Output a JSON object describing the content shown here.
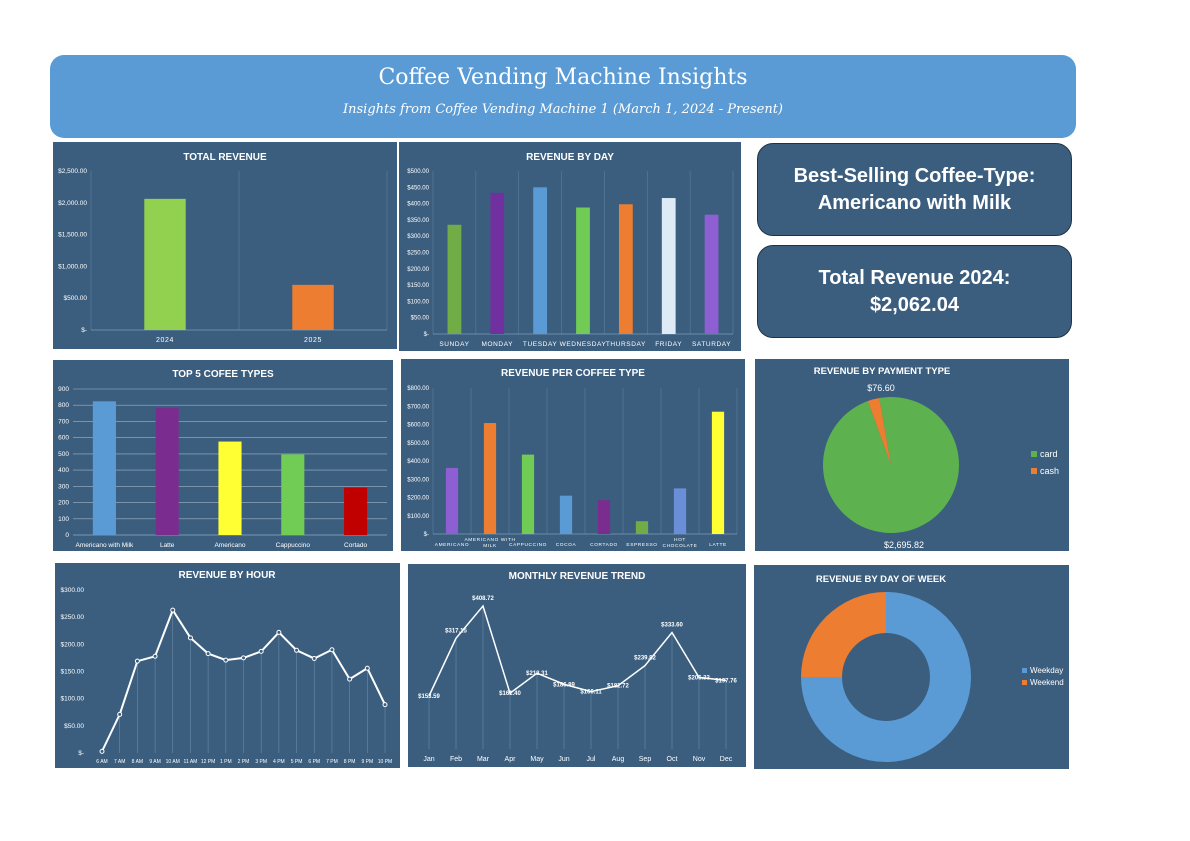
{
  "banner": {
    "title": "Coffee Vending Machine Insights",
    "subtitle": "Insights from Coffee Vending Machine 1 (March 1, 2024 - Present)"
  },
  "kpis": {
    "best_selling_label": "Best-Selling Coffee-Type:",
    "best_selling_value": "Americano with Milk",
    "total_revenue_label": "Total Revenue 2024:",
    "total_revenue_value": "$2,062.04"
  },
  "colors": {
    "panel_bg": "#3b5e7f",
    "banner_bg": "#5b9bd5"
  },
  "chart_data": [
    {
      "id": "total_revenue",
      "type": "bar",
      "title": "TOTAL REVENUE",
      "categories": [
        "2024",
        "2025"
      ],
      "values": [
        2062.04,
        710
      ],
      "colors": [
        "#92d050",
        "#ed7d31"
      ],
      "ylim": [
        0,
        2500
      ],
      "yticks": [
        "$-",
        "$500.00",
        "$1,000.00",
        "$1,500.00",
        "$2,000.00",
        "$2,500.00"
      ],
      "grid": "vertical"
    },
    {
      "id": "revenue_by_day",
      "type": "bar",
      "title": "REVENUE BY DAY",
      "categories": [
        "SUNDAY",
        "MONDAY",
        "TUESDAY",
        "WEDNESDAY",
        "THURSDAY",
        "FRIDAY",
        "SATURDAY"
      ],
      "values": [
        335,
        433,
        450,
        388,
        398,
        417,
        366
      ],
      "colors": [
        "#70ad47",
        "#7030a0",
        "#5b9bd5",
        "#70cc55",
        "#ed7d31",
        "#deebf7",
        "#8d5fd3"
      ],
      "ylim": [
        0,
        500
      ],
      "yticks": [
        "$-",
        "$50.00",
        "$100.00",
        "$150.00",
        "$200.00",
        "$250.00",
        "$300.00",
        "$350.00",
        "$400.00",
        "$450.00",
        "$500.00"
      ],
      "grid": "vertical"
    },
    {
      "id": "top5_coffee",
      "type": "bar",
      "title": "TOP 5 COFEE TYPES",
      "categories": [
        "Americano with Milk",
        "Latte",
        "Americano",
        "Cappuccino",
        "Cortado"
      ],
      "values": [
        824,
        783,
        576,
        497,
        292
      ],
      "colors": [
        "#5b9bd5",
        "#7b2c8f",
        "#ffff33",
        "#70cc55",
        "#c00000"
      ],
      "ylim": [
        0,
        900
      ],
      "yticks": [
        "0",
        "100",
        "200",
        "300",
        "400",
        "500",
        "600",
        "700",
        "800",
        "900"
      ],
      "grid": "horizontal"
    },
    {
      "id": "revenue_per_coffee",
      "type": "bar",
      "title": "REVENUE PER COFFEE TYPE",
      "categories": [
        "AMERICANO",
        "AMERICANO WITH MILK",
        "CAPPUCCINO",
        "COCOA",
        "CORTADO",
        "ESPRESSO",
        "HOT CHOCOLATE",
        "LATTE"
      ],
      "values": [
        362,
        608,
        435,
        210,
        185,
        70,
        250,
        670
      ],
      "colors": [
        "#8d5fd3",
        "#ed7d31",
        "#70cc55",
        "#5b9bd5",
        "#7b2c8f",
        "#70ad47",
        "#6a8fd8",
        "#ffff33"
      ],
      "ylim": [
        0,
        800
      ],
      "yticks": [
        "$-",
        "$100.00",
        "$200.00",
        "$300.00",
        "$400.00",
        "$500.00",
        "$600.00",
        "$700.00",
        "$800.00"
      ],
      "grid": "vertical"
    },
    {
      "id": "payment_type",
      "type": "pie",
      "title": "REVENUE BY PAYMENT TYPE",
      "labels": [
        "card",
        "cash"
      ],
      "values": [
        2695.82,
        76.6
      ],
      "value_labels": [
        "$2,695.82",
        "$76.60"
      ],
      "colors": [
        "#5db14f",
        "#ed7d31"
      ],
      "legend": "right"
    },
    {
      "id": "revenue_by_hour",
      "type": "line",
      "title": "REVENUE BY HOUR",
      "x": [
        "6 AM",
        "7 AM",
        "8 AM",
        "9 AM",
        "10 AM",
        "11 AM",
        "12 PM",
        "1 PM",
        "2 PM",
        "3 PM",
        "4 PM",
        "5 PM",
        "6 PM",
        "7 PM",
        "8 PM",
        "9 PM",
        "10 PM"
      ],
      "values": [
        3,
        71,
        169,
        178,
        263,
        212,
        183,
        171,
        175,
        187,
        222,
        189,
        174,
        190,
        136,
        156,
        89
      ],
      "ylim": [
        0,
        300
      ],
      "yticks": [
        "$-",
        "$50.00",
        "$100.00",
        "$150.00",
        "$200.00",
        "$250.00",
        "$300.00"
      ],
      "color": "#ffffff"
    },
    {
      "id": "monthly_trend",
      "type": "line",
      "title": "MONTHLY REVENUE TREND",
      "x": [
        "Jan",
        "Feb",
        "Mar",
        "Apr",
        "May",
        "Jun",
        "Jul",
        "Aug",
        "Sep",
        "Oct",
        "Nov",
        "Dec"
      ],
      "values": [
        153.59,
        317.15,
        408.72,
        161.4,
        218.31,
        186.89,
        166.11,
        182.72,
        239.82,
        333.6,
        206.33,
        197.76
      ],
      "value_labels": [
        "$153.59",
        "$317.15",
        "$408.72",
        "$161.40",
        "$218.31",
        "$186.89",
        "$166.11",
        "$182.72",
        "$239.82",
        "$333.60",
        "$206.33",
        "$197.76"
      ],
      "color": "#ffffff"
    },
    {
      "id": "day_of_week",
      "type": "pie",
      "variant": "donut",
      "title": "REVENUE BY DAY OF WEEK",
      "labels": [
        "Weekday",
        "Weekend"
      ],
      "values": [
        75,
        25
      ],
      "colors": [
        "#5b9bd5",
        "#ed7d31"
      ],
      "legend": "right"
    }
  ]
}
